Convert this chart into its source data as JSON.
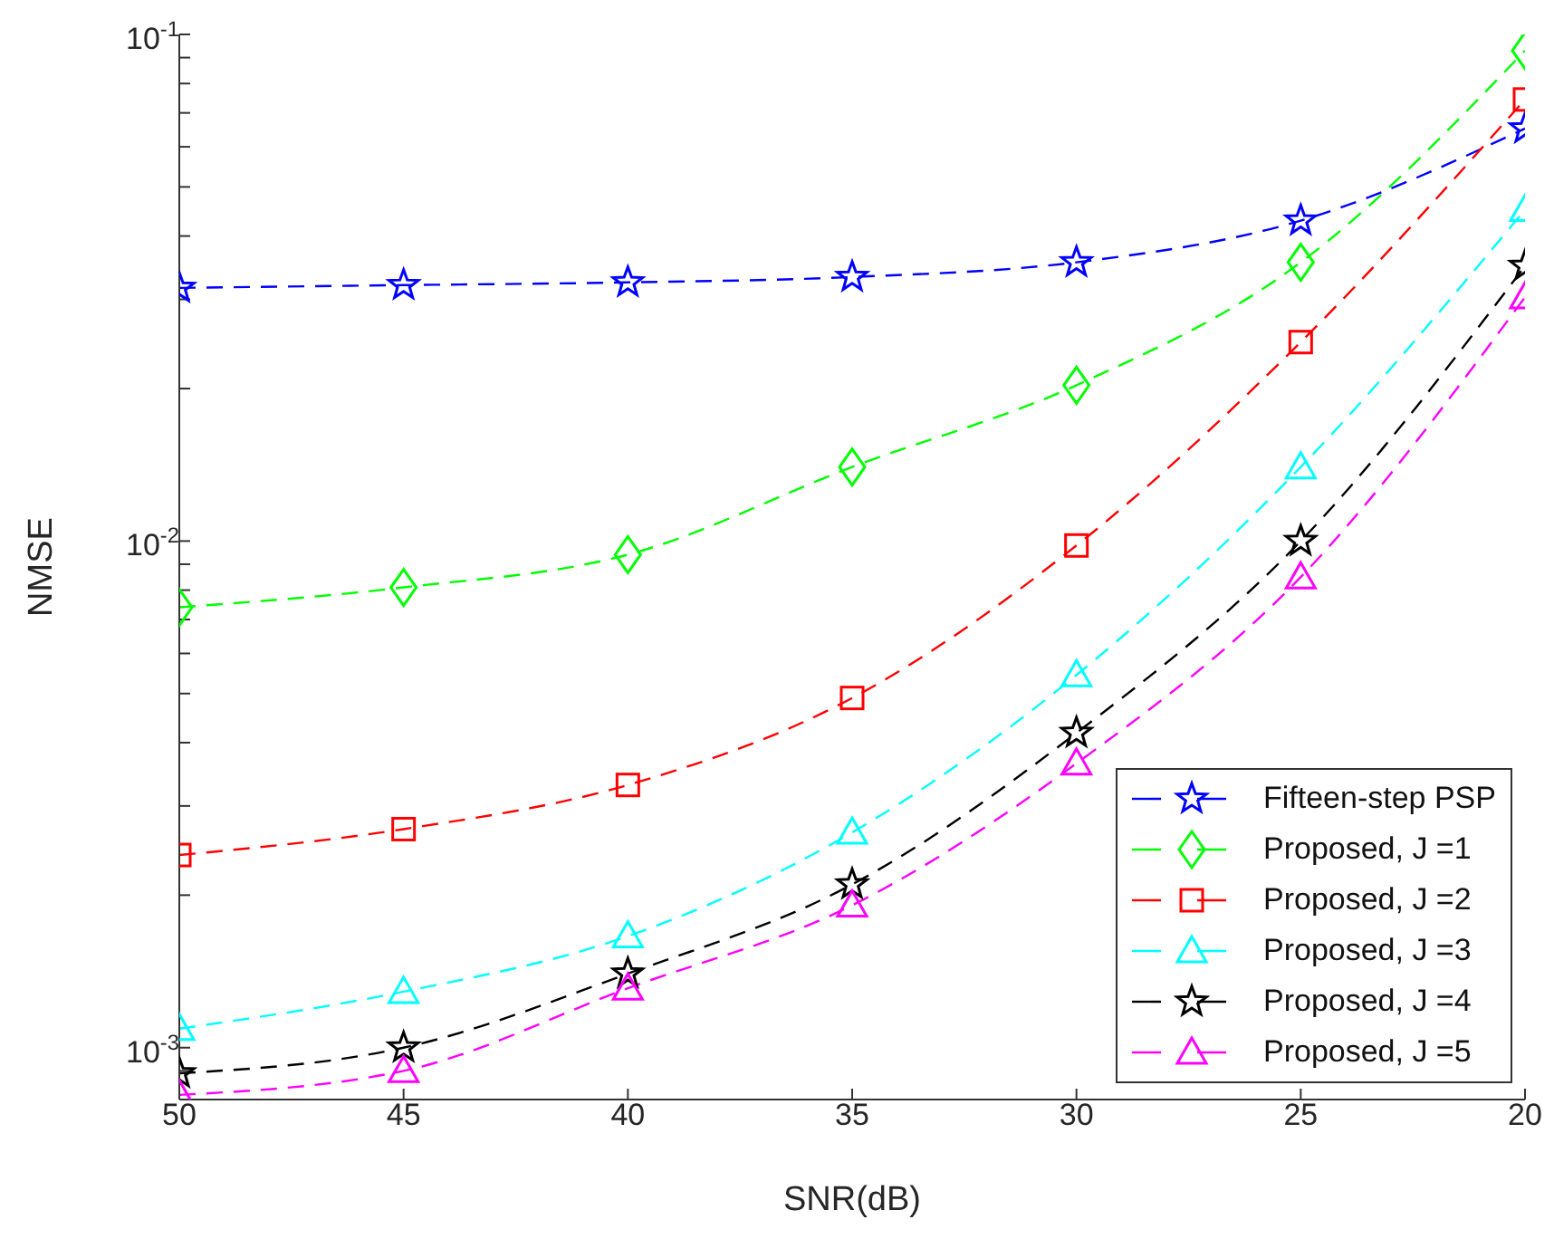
{
  "chart_data": {
    "type": "line",
    "xlabel": "SNR(dB)",
    "ylabel": "NMSE",
    "log": "y",
    "legend": "bottom right",
    "line_style": "dashed",
    "x": [
      50,
      45,
      40,
      35,
      30,
      25,
      20
    ],
    "xlim": [
      50,
      20
    ],
    "xticks": [
      50,
      45,
      40,
      35,
      30,
      25,
      20
    ],
    "ylim": [
      0.00079,
      0.1
    ],
    "yticks": [
      {
        "value": 0.0009,
        "label": null
      },
      {
        "value": 0.001,
        "label": "10$^{-3}$"
      },
      {
        "value": 0.002,
        "label": null
      },
      {
        "value": 0.003,
        "label": null
      },
      {
        "value": 0.004,
        "label": null
      },
      {
        "value": 0.005,
        "label": null
      },
      {
        "value": 0.006,
        "label": null
      },
      {
        "value": 0.007,
        "label": null
      },
      {
        "value": 0.008,
        "label": null
      },
      {
        "value": 0.009,
        "label": null
      },
      {
        "value": 0.01,
        "label": "10$^{-2}$"
      },
      {
        "value": 0.02,
        "label": null
      },
      {
        "value": 0.03,
        "label": null
      },
      {
        "value": 0.04,
        "label": null
      },
      {
        "value": 0.05,
        "label": null
      },
      {
        "value": 0.06,
        "label": null
      },
      {
        "value": 0.07,
        "label": null
      },
      {
        "value": 0.08,
        "label": null
      },
      {
        "value": 0.09,
        "label": null
      },
      {
        "value": 0.1,
        "label": "10$^{-1}$"
      }
    ],
    "series": [
      {
        "name": "Fifteen-step PSP",
        "color": "#0000ff",
        "marker": "star",
        "values": [
          0.0316,
          0.032,
          0.0324,
          0.0332,
          0.0355,
          0.0429,
          0.0652
        ]
      },
      {
        "name": "Proposed, J =1",
        "color": "#00ff00",
        "marker": "diamond",
        "values": [
          0.0074,
          0.0081,
          0.0094,
          0.014,
          0.0203,
          0.0355,
          0.0929
        ]
      },
      {
        "name": "Proposed, J =2",
        "color": "#ff0000",
        "marker": "square",
        "values": [
          0.0024,
          0.0027,
          0.0033,
          0.0049,
          0.0098,
          0.0247,
          0.0744
        ]
      },
      {
        "name": "Proposed, J =3",
        "color": "#00ffff",
        "marker": "triangle",
        "values": [
          0.00109,
          0.00129,
          0.00166,
          0.00266,
          0.00544,
          0.014,
          0.0451
        ]
      },
      {
        "name": "Proposed, J =4",
        "color": "#000000",
        "marker": "star",
        "values": [
          0.00089,
          0.001,
          0.0014,
          0.0021,
          0.00418,
          0.01,
          0.0349
        ]
      },
      {
        "name": "Proposed, J =5",
        "color": "#ff00ff",
        "marker": "triangle",
        "values": [
          0.000807,
          0.0009,
          0.00131,
          0.00191,
          0.00364,
          0.00849,
          0.0303
        ]
      }
    ]
  }
}
